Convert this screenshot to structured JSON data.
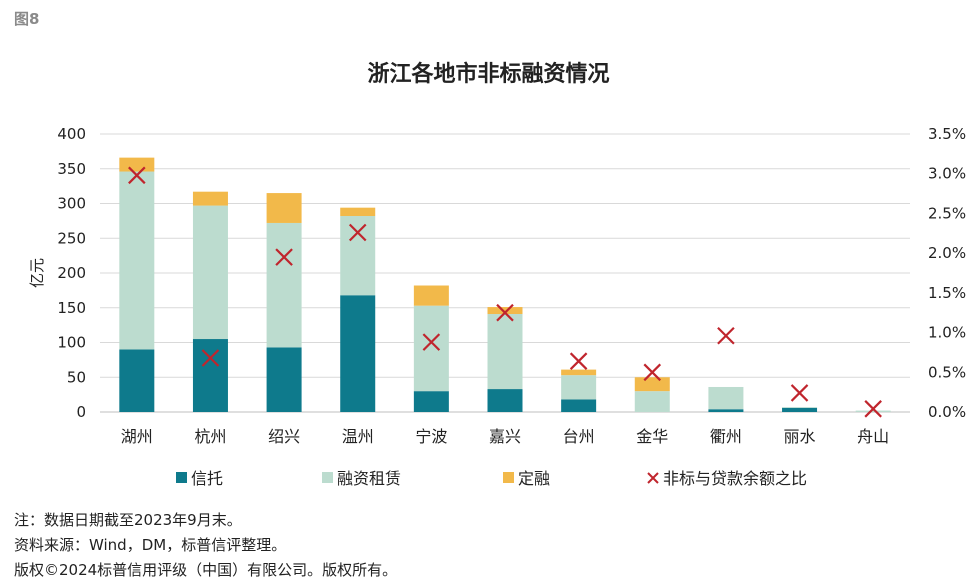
{
  "figure_label": "图8",
  "notes": [
    "注：数据日期截至2023年9月末。",
    "资料来源：Wind，DM，标普信评整理。",
    "版权©2024标普信用评级（中国）有限公司。版权所有。"
  ],
  "chart_data": {
    "type": "bar",
    "stacked": true,
    "title": "浙江各地市非标融资情况",
    "ylabel": "亿元",
    "ylim": [
      0,
      400
    ],
    "yticks": [
      "0",
      "50",
      "100",
      "150",
      "200",
      "250",
      "300",
      "350",
      "400"
    ],
    "y2lim": [
      0,
      3.5
    ],
    "y2ticks": [
      "0.0%",
      "0.5%",
      "1.0%",
      "1.5%",
      "2.0%",
      "2.5%",
      "3.0%",
      "3.5%"
    ],
    "grid": true,
    "legend_position": "bottom",
    "categories": [
      "湖州",
      "杭州",
      "绍兴",
      "温州",
      "宁波",
      "嘉兴",
      "台州",
      "金华",
      "衢州",
      "丽水",
      "舟山"
    ],
    "series": [
      {
        "name": "信托",
        "kind": "bar",
        "color": "#0e7a8c",
        "values": [
          90,
          105,
          93,
          168,
          30,
          33,
          18,
          0,
          4,
          6,
          0
        ]
      },
      {
        "name": "融资租赁",
        "kind": "bar",
        "color": "#bcdccf",
        "values": [
          256,
          192,
          179,
          114,
          123,
          108,
          35,
          30,
          32,
          1,
          2
        ]
      },
      {
        "name": "定融",
        "kind": "bar",
        "color": "#f2b94a",
        "values": [
          20,
          20,
          43,
          12,
          29,
          10,
          8,
          20,
          0,
          0,
          0
        ]
      },
      {
        "name": "非标与贷款余额之比",
        "kind": "marker",
        "axis": "right",
        "color": "#c0252d",
        "values": [
          2.98,
          0.68,
          1.95,
          2.26,
          0.88,
          1.25,
          0.64,
          0.5,
          0.96,
          0.24,
          0.04
        ]
      }
    ]
  }
}
